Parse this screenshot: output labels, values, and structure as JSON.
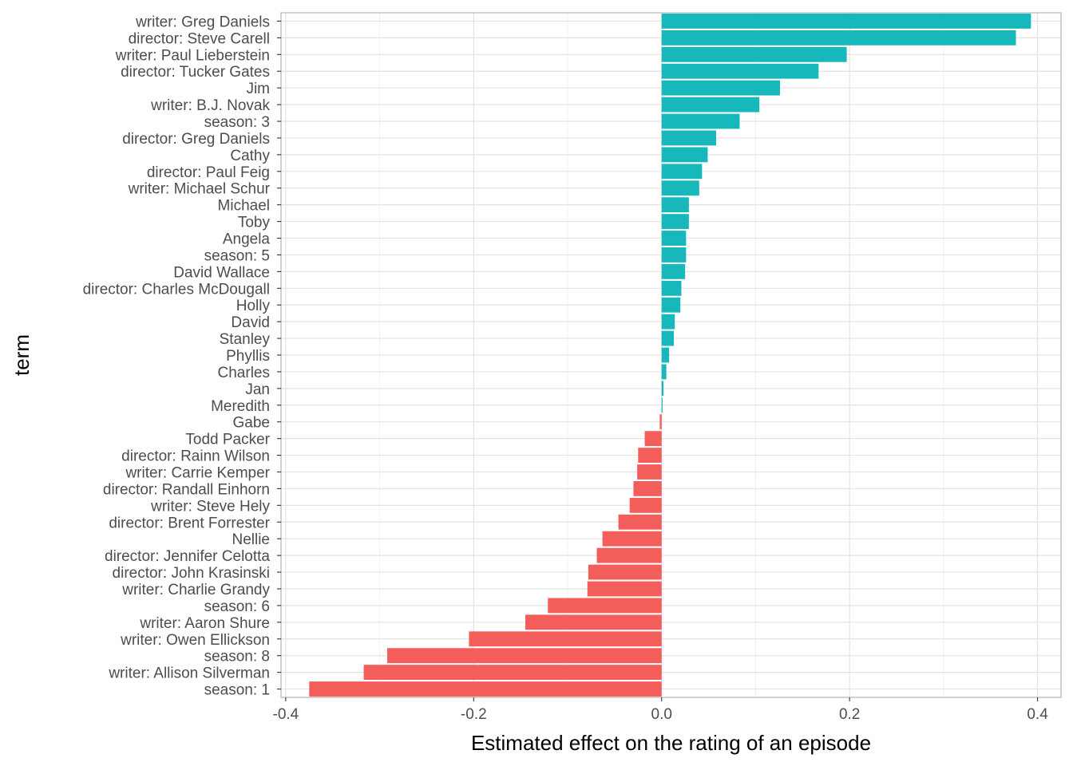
{
  "chart_data": {
    "type": "bar",
    "orientation": "horizontal",
    "xlabel": "Estimated effect on the rating of an episode",
    "ylabel": "term",
    "xlim": [
      -0.405,
      0.425
    ],
    "xticks": [
      -0.4,
      -0.2,
      0.0,
      0.2,
      0.4
    ],
    "xtick_labels": [
      "-0.4",
      "-0.2",
      "0.0",
      "0.2",
      "0.4"
    ],
    "grid": true,
    "colors": {
      "positive": "#17b8bb",
      "negative": "#f35e5a"
    },
    "categories": [
      "writer: Greg Daniels",
      "director: Steve Carell",
      "writer: Paul Lieberstein",
      "director: Tucker Gates",
      "Jim",
      "writer: B.J. Novak",
      "season: 3",
      "director: Greg Daniels",
      "Cathy",
      "director: Paul Feig",
      "writer: Michael Schur",
      "Michael",
      "Toby",
      "Angela",
      "season: 5",
      "David Wallace",
      "director: Charles McDougall",
      "Holly",
      "David",
      "Stanley",
      "Phyllis",
      "Charles",
      "Jan",
      "Meredith",
      "Gabe",
      "Todd Packer",
      "director: Rainn Wilson",
      "writer: Carrie Kemper",
      "director: Randall Einhorn",
      "writer: Steve Hely",
      "director: Brent Forrester",
      "Nellie",
      "director: Jennifer Celotta",
      "director: John Krasinski",
      "writer: Charlie Grandy",
      "season: 6",
      "writer: Aaron Shure",
      "writer: Owen Ellickson",
      "season: 8",
      "writer: Allison Silverman",
      "season: 1"
    ],
    "values": [
      0.393,
      0.377,
      0.197,
      0.167,
      0.126,
      0.104,
      0.083,
      0.058,
      0.049,
      0.043,
      0.04,
      0.029,
      0.029,
      0.026,
      0.026,
      0.025,
      0.021,
      0.02,
      0.014,
      0.013,
      0.008,
      0.005,
      0.002,
      0.001,
      -0.002,
      -0.018,
      -0.025,
      -0.026,
      -0.03,
      -0.034,
      -0.046,
      -0.063,
      -0.069,
      -0.078,
      -0.079,
      -0.121,
      -0.145,
      -0.205,
      -0.292,
      -0.317,
      -0.375
    ]
  }
}
